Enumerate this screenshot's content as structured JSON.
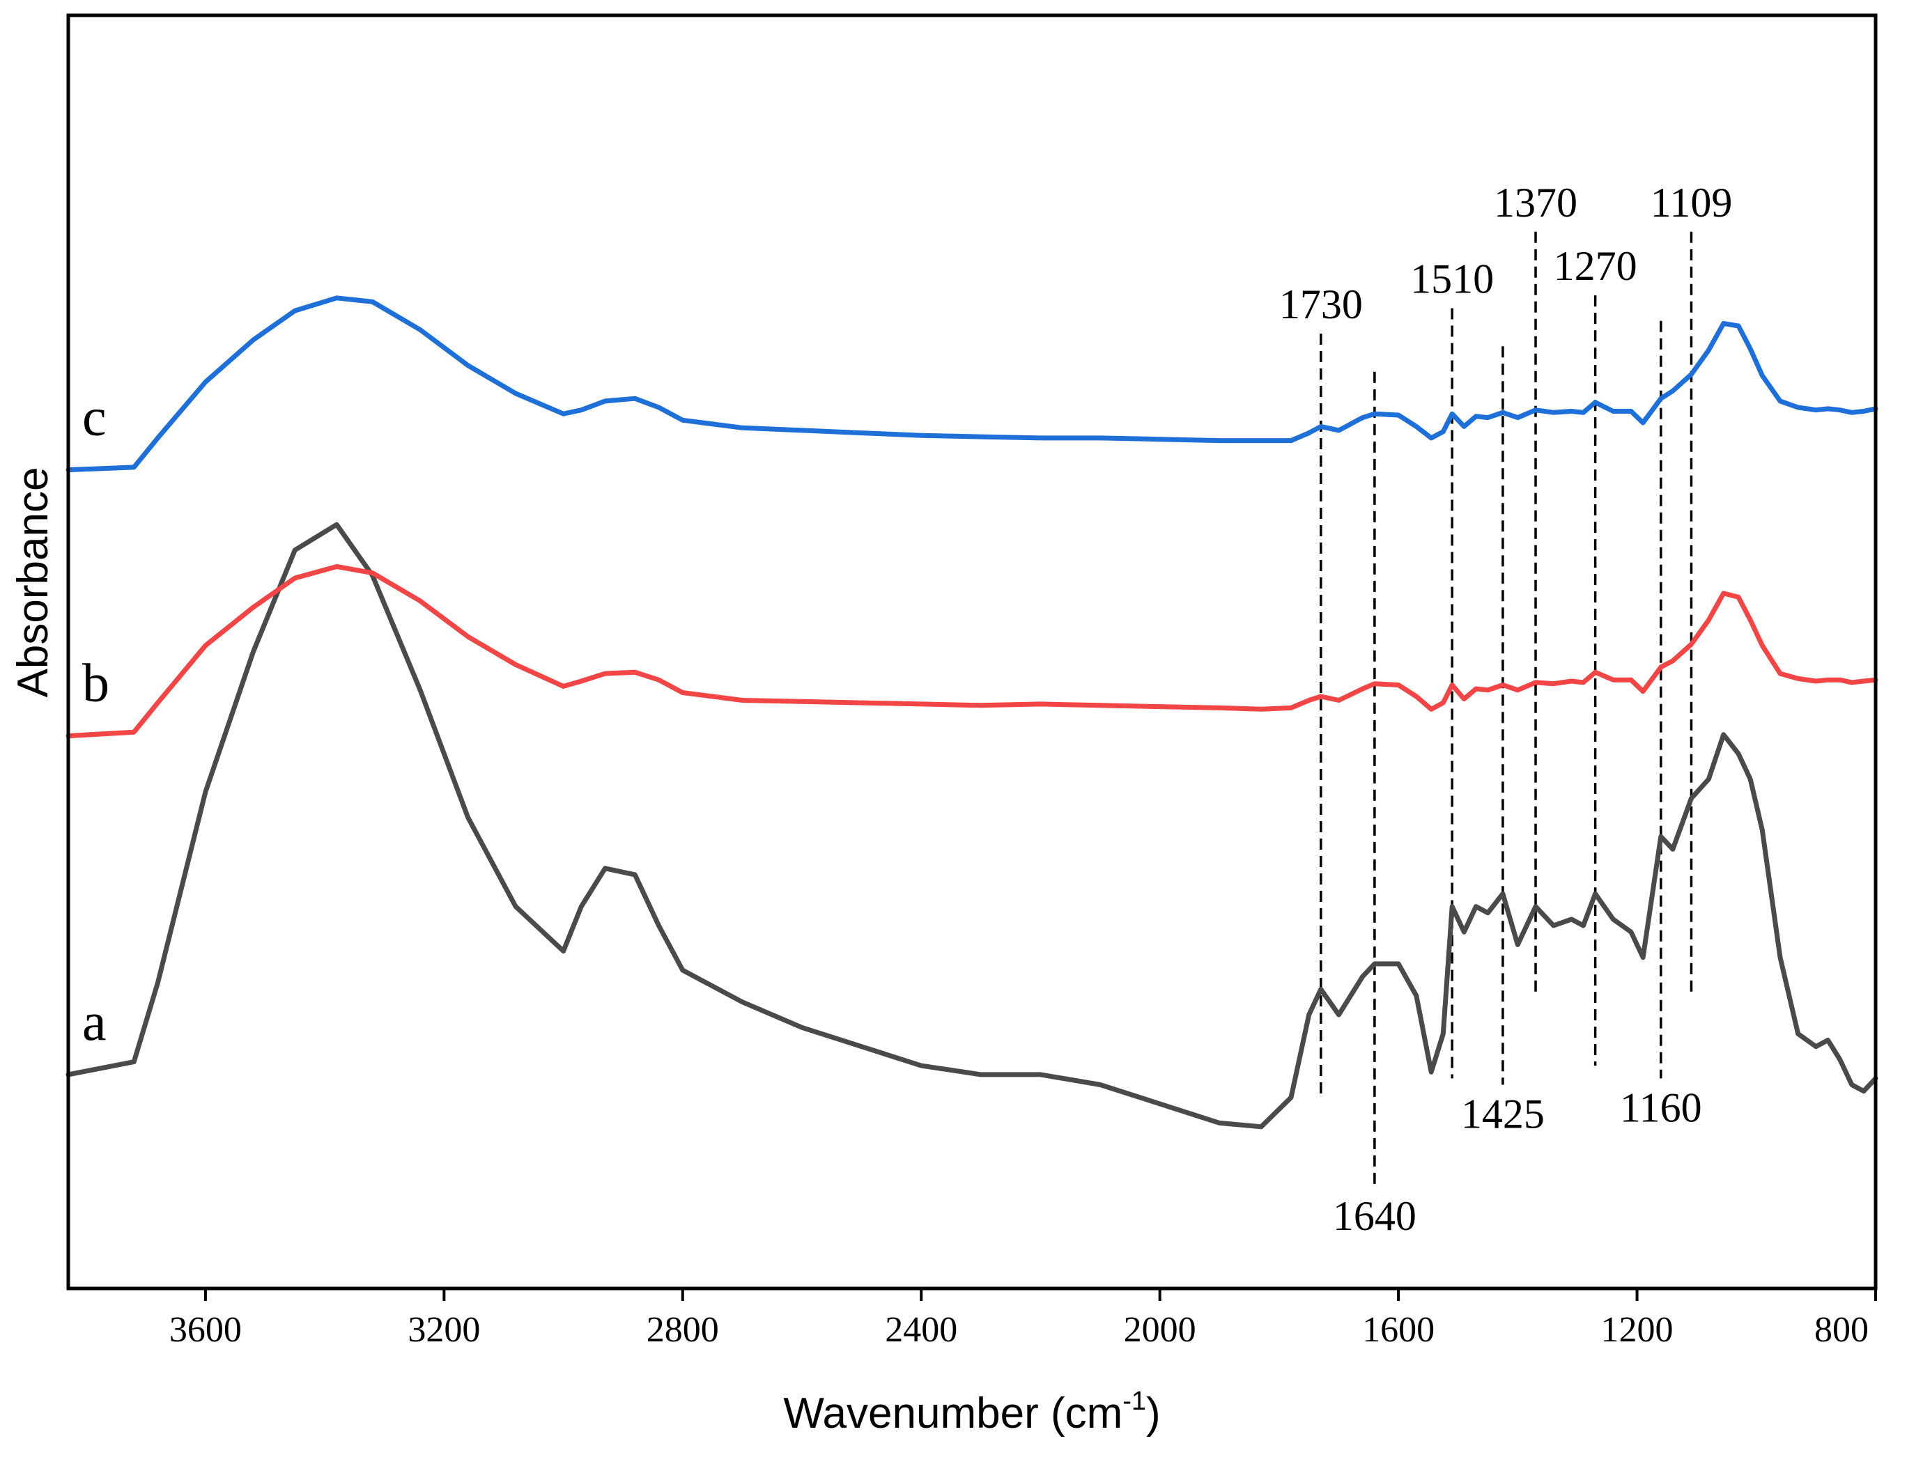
{
  "chart_data": {
    "type": "line",
    "title": "",
    "xlabel": "Wavenumber (cm",
    "xlabel_sup": "-1",
    "xlabel_close": ")",
    "ylabel": "Absorbance",
    "xlim": [
      3830,
      800
    ],
    "x_reversed": true,
    "ylim": [
      0,
      1
    ],
    "y_ticks_shown": false,
    "x_ticks": [
      3600,
      3200,
      2800,
      2400,
      2000,
      1600,
      1200,
      800
    ],
    "x_tick_labels": [
      "3600",
      "3200",
      "2800",
      "2400",
      "2000",
      "1600",
      "1200",
      "800"
    ],
    "grid": false,
    "series": [
      {
        "name": "a",
        "color": "#4a4a4a",
        "x": [
          3830,
          3720,
          3680,
          3600,
          3520,
          3450,
          3380,
          3320,
          3240,
          3160,
          3080,
          3000,
          2970,
          2930,
          2880,
          2840,
          2800,
          2700,
          2600,
          2500,
          2400,
          2300,
          2200,
          2100,
          2000,
          1900,
          1830,
          1780,
          1750,
          1730,
          1700,
          1660,
          1640,
          1600,
          1570,
          1545,
          1525,
          1510,
          1490,
          1470,
          1450,
          1425,
          1400,
          1370,
          1340,
          1310,
          1290,
          1270,
          1240,
          1210,
          1190,
          1160,
          1140,
          1109,
          1080,
          1055,
          1030,
          1010,
          990,
          960,
          930,
          900,
          880,
          860,
          840,
          820,
          800
        ],
        "y": [
          0.168,
          0.178,
          0.24,
          0.39,
          0.5,
          0.58,
          0.6,
          0.56,
          0.47,
          0.37,
          0.3,
          0.265,
          0.3,
          0.33,
          0.325,
          0.285,
          0.25,
          0.225,
          0.205,
          0.19,
          0.175,
          0.168,
          0.168,
          0.16,
          0.145,
          0.13,
          0.127,
          0.15,
          0.215,
          0.235,
          0.215,
          0.245,
          0.255,
          0.255,
          0.23,
          0.17,
          0.2,
          0.3,
          0.28,
          0.3,
          0.295,
          0.31,
          0.27,
          0.3,
          0.285,
          0.29,
          0.285,
          0.31,
          0.29,
          0.28,
          0.26,
          0.355,
          0.345,
          0.385,
          0.4,
          0.435,
          0.42,
          0.4,
          0.36,
          0.26,
          0.2,
          0.19,
          0.195,
          0.18,
          0.16,
          0.155,
          0.165
        ]
      },
      {
        "name": "b",
        "color": "#f24545",
        "x": [
          3830,
          3720,
          3680,
          3600,
          3520,
          3450,
          3380,
          3320,
          3240,
          3160,
          3080,
          3000,
          2970,
          2930,
          2880,
          2840,
          2800,
          2700,
          2600,
          2500,
          2400,
          2300,
          2200,
          2100,
          2000,
          1900,
          1830,
          1780,
          1750,
          1730,
          1700,
          1660,
          1640,
          1600,
          1570,
          1545,
          1525,
          1510,
          1490,
          1470,
          1450,
          1425,
          1400,
          1370,
          1340,
          1310,
          1290,
          1270,
          1240,
          1210,
          1190,
          1160,
          1140,
          1109,
          1080,
          1055,
          1030,
          1010,
          990,
          960,
          930,
          900,
          880,
          860,
          840,
          820,
          800
        ],
        "y": [
          0.434,
          0.437,
          0.46,
          0.505,
          0.535,
          0.558,
          0.567,
          0.562,
          0.54,
          0.512,
          0.49,
          0.473,
          0.477,
          0.483,
          0.484,
          0.478,
          0.468,
          0.462,
          0.461,
          0.46,
          0.459,
          0.458,
          0.459,
          0.458,
          0.457,
          0.456,
          0.455,
          0.456,
          0.462,
          0.465,
          0.462,
          0.471,
          0.475,
          0.474,
          0.465,
          0.455,
          0.46,
          0.474,
          0.463,
          0.471,
          0.47,
          0.474,
          0.47,
          0.476,
          0.475,
          0.477,
          0.476,
          0.484,
          0.478,
          0.478,
          0.469,
          0.488,
          0.493,
          0.506,
          0.525,
          0.546,
          0.543,
          0.525,
          0.505,
          0.483,
          0.479,
          0.477,
          0.478,
          0.478,
          0.476,
          0.477,
          0.478
        ]
      },
      {
        "name": "c",
        "color": "#1f6fd8",
        "x": [
          3830,
          3720,
          3680,
          3600,
          3520,
          3450,
          3380,
          3320,
          3240,
          3160,
          3080,
          3000,
          2970,
          2930,
          2880,
          2840,
          2800,
          2700,
          2600,
          2500,
          2400,
          2300,
          2200,
          2100,
          2000,
          1900,
          1830,
          1780,
          1750,
          1730,
          1700,
          1660,
          1640,
          1600,
          1570,
          1545,
          1525,
          1510,
          1490,
          1470,
          1450,
          1425,
          1400,
          1370,
          1340,
          1310,
          1290,
          1270,
          1240,
          1210,
          1190,
          1160,
          1140,
          1109,
          1080,
          1055,
          1030,
          1010,
          990,
          960,
          930,
          900,
          880,
          860,
          840,
          820,
          800
        ],
        "y": [
          0.643,
          0.645,
          0.668,
          0.712,
          0.745,
          0.768,
          0.778,
          0.775,
          0.753,
          0.725,
          0.703,
          0.687,
          0.69,
          0.697,
          0.699,
          0.692,
          0.682,
          0.676,
          0.674,
          0.672,
          0.67,
          0.669,
          0.668,
          0.668,
          0.667,
          0.666,
          0.666,
          0.666,
          0.672,
          0.677,
          0.674,
          0.684,
          0.687,
          0.686,
          0.677,
          0.668,
          0.673,
          0.687,
          0.677,
          0.685,
          0.684,
          0.688,
          0.684,
          0.69,
          0.688,
          0.689,
          0.688,
          0.696,
          0.689,
          0.689,
          0.68,
          0.699,
          0.705,
          0.718,
          0.737,
          0.758,
          0.756,
          0.738,
          0.717,
          0.697,
          0.692,
          0.69,
          0.691,
          0.69,
          0.688,
          0.689,
          0.691
        ]
      }
    ],
    "peak_markers": [
      {
        "label": "1730",
        "x": 1730,
        "label_pos": "top",
        "line_top": 0.75,
        "line_bottom": 0.15
      },
      {
        "label": "1640",
        "x": 1640,
        "label_pos": "bottom",
        "line_top": 0.72,
        "line_bottom": 0.08
      },
      {
        "label": "1510",
        "x": 1510,
        "label_pos": "top",
        "line_top": 0.77,
        "line_bottom": 0.165
      },
      {
        "label": "1425",
        "x": 1425,
        "label_pos": "bottom",
        "line_top": 0.74,
        "line_bottom": 0.16
      },
      {
        "label": "1370",
        "x": 1370,
        "label_pos": "top",
        "line_top": 0.83,
        "line_bottom": 0.23
      },
      {
        "label": "1270",
        "x": 1270,
        "label_pos": "top",
        "line_top": 0.78,
        "line_bottom": 0.175
      },
      {
        "label": "1160",
        "x": 1160,
        "label_pos": "bottom",
        "line_top": 0.76,
        "line_bottom": 0.165
      },
      {
        "label": "1109",
        "x": 1109,
        "label_pos": "top",
        "line_top": 0.83,
        "line_bottom": 0.23
      }
    ]
  }
}
